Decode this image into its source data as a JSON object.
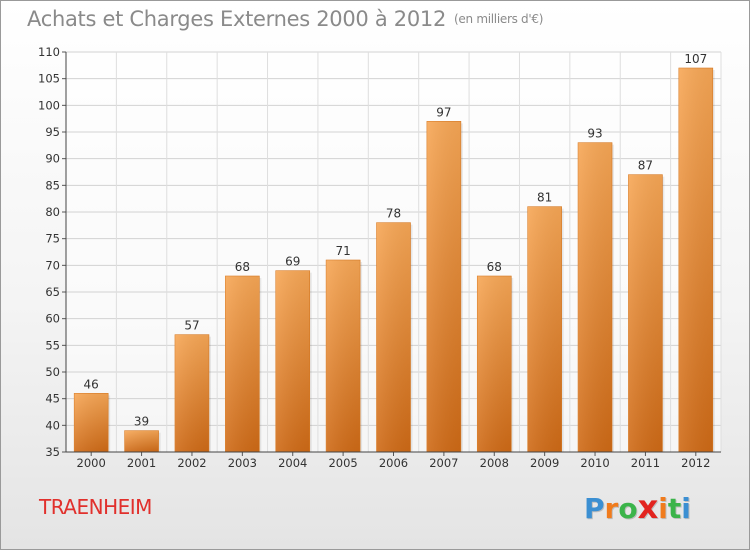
{
  "title": "Achats et Charges Externes 2000 à 2012",
  "subtitle": "(en milliers d'€)",
  "commune": "TRAENHEIM",
  "logo": {
    "letters": [
      "P",
      "r",
      "o",
      "x",
      "i",
      "t",
      "i"
    ],
    "colors": [
      "#3b8fd2",
      "#f07b1c",
      "#3bb44a",
      "#e2241f",
      "#f07b1c",
      "#3bb44a",
      "#3b8fd2"
    ]
  },
  "chart_data": {
    "type": "bar",
    "title": "Achats et Charges Externes 2000 à 2012",
    "subtitle": "(en milliers d'€)",
    "xlabel": "",
    "ylabel": "",
    "categories": [
      "2000",
      "2001",
      "2002",
      "2003",
      "2004",
      "2005",
      "2006",
      "2007",
      "2008",
      "2009",
      "2010",
      "2011",
      "2012"
    ],
    "values": [
      46,
      39,
      57,
      68,
      69,
      71,
      78,
      97,
      68,
      81,
      93,
      87,
      107
    ],
    "ylim": [
      35,
      110
    ],
    "yticks": [
      35,
      40,
      45,
      50,
      55,
      60,
      65,
      70,
      75,
      80,
      85,
      90,
      95,
      100,
      105,
      110
    ],
    "grid": true,
    "legend": "none",
    "bar_color": "#f0913a"
  }
}
